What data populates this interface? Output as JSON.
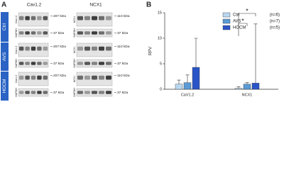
{
  "panel_a": {
    "label": "A",
    "columns": [
      "Cav1.2",
      "NCX1"
    ],
    "groups": [
      {
        "name": "Ctrl",
        "left": [
          {
            "protein": "Cav1.2",
            "marker": "207 kDa"
          },
          {
            "protein": "GAPDH",
            "marker": "37 kDa"
          }
        ],
        "right": [
          {
            "protein": "NCX1",
            "marker": "110 kDa"
          },
          {
            "protein": "GAPDH",
            "marker": "37 kDa"
          }
        ]
      },
      {
        "name": "AVS",
        "left": [
          {
            "protein": "Cav1.2",
            "marker": "207 kDa"
          },
          {
            "protein": "GAPDH",
            "marker": "37 kDa"
          }
        ],
        "right": [
          {
            "protein": "NCX1",
            "marker": "110 kDa"
          },
          {
            "protein": "GAPDH",
            "marker": "37 kDa"
          }
        ]
      },
      {
        "name": "HOCM",
        "left": [
          {
            "protein": "Cav1.2",
            "marker": "207 kDa"
          },
          {
            "protein": "GAPDH",
            "marker": "37 kDa"
          }
        ],
        "right": [
          {
            "protein": "NCX1",
            "marker": "110 kDa"
          },
          {
            "protein": "GAPDH",
            "marker": "37 kDa"
          }
        ]
      }
    ]
  },
  "chart_data": {
    "type": "bar",
    "panel_label": "B",
    "y_label": "RPV",
    "categories": [
      "CaV1.2",
      "NCX1"
    ],
    "series": [
      {
        "name": "Ctrl",
        "note": "(n=6)",
        "color": "#b9d7f0",
        "values": [
          1.0,
          0.2
        ],
        "errors": [
          0.8,
          0.3
        ]
      },
      {
        "name": "AVS",
        "note": "(n=7)",
        "color": "#5b9bd5",
        "values": [
          1.3,
          1.0
        ],
        "errors": [
          1.5,
          0.3
        ]
      },
      {
        "name": "HOCM",
        "note": "(n=5)",
        "color": "#2a55c8",
        "values": [
          4.3,
          1.2
        ],
        "errors": [
          5.7,
          11.6
        ]
      }
    ],
    "ylim": [
      0,
      15
    ],
    "yticks": [
      0,
      5,
      10,
      15
    ],
    "annotations": [
      "*",
      "*"
    ]
  }
}
